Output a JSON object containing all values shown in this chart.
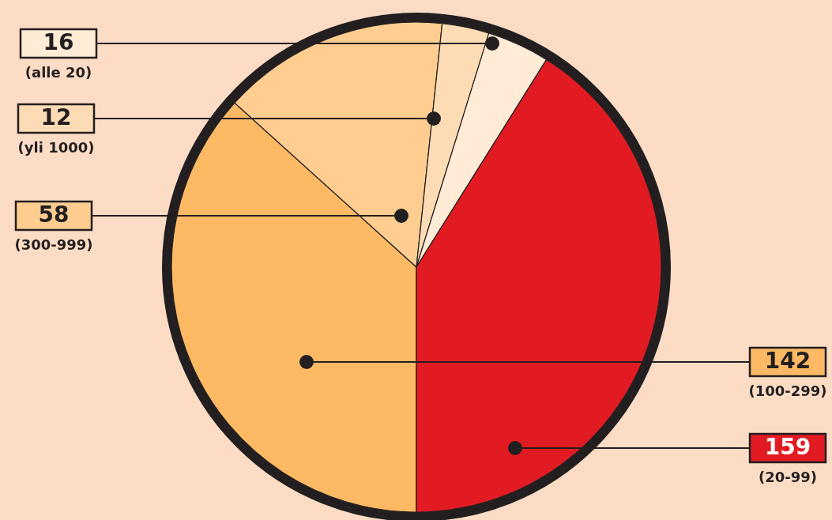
{
  "chart_data": {
    "type": "pie",
    "categories": [
      "(100-299)",
      "(300-999)",
      "(yli 1000)",
      "(alle 20)",
      "(20-99)"
    ],
    "values": [
      142,
      58,
      12,
      16,
      159
    ],
    "colors": [
      "#fdb963",
      "#fecd8f",
      "#fddcb5",
      "#ffebd6",
      "#e21b23"
    ],
    "data_labels": true
  }
}
